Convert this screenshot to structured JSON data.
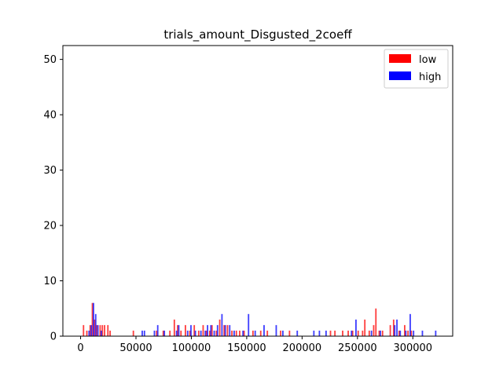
{
  "chart_data": {
    "type": "bar",
    "title": "trials_amount_Disgusted_2coeff",
    "xlabel": "",
    "ylabel": "",
    "xlim": [
      -16000,
      336000
    ],
    "ylim": [
      0,
      52.5
    ],
    "x_ticks": [
      0,
      50000,
      100000,
      150000,
      200000,
      250000,
      300000
    ],
    "x_tick_labels": [
      "0",
      "50000",
      "100000",
      "150000",
      "200000",
      "250000",
      "300000"
    ],
    "y_ticks": [
      0,
      10,
      20,
      30,
      40,
      50
    ],
    "y_tick_labels": [
      "0",
      "10",
      "20",
      "30",
      "40",
      "50"
    ],
    "grid": false,
    "legend_position": "top-right",
    "bin_width": 1300,
    "series": [
      {
        "name": "low",
        "color": "#ff0000",
        "bars": [
          {
            "x": 2000,
            "y": 2
          },
          {
            "x": 5000,
            "y": 1
          },
          {
            "x": 8000,
            "y": 2
          },
          {
            "x": 10000,
            "y": 6
          },
          {
            "x": 12000,
            "y": 3
          },
          {
            "x": 14000,
            "y": 2
          },
          {
            "x": 17000,
            "y": 2
          },
          {
            "x": 19000,
            "y": 2
          },
          {
            "x": 21000,
            "y": 2
          },
          {
            "x": 24000,
            "y": 2
          },
          {
            "x": 26000,
            "y": 1
          },
          {
            "x": 47000,
            "y": 1
          },
          {
            "x": 68000,
            "y": 1
          },
          {
            "x": 74000,
            "y": 1
          },
          {
            "x": 80000,
            "y": 1
          },
          {
            "x": 84000,
            "y": 3
          },
          {
            "x": 87000,
            "y": 2
          },
          {
            "x": 90000,
            "y": 1
          },
          {
            "x": 94000,
            "y": 2
          },
          {
            "x": 98000,
            "y": 1
          },
          {
            "x": 102000,
            "y": 2
          },
          {
            "x": 106000,
            "y": 1
          },
          {
            "x": 110000,
            "y": 2
          },
          {
            "x": 113000,
            "y": 1
          },
          {
            "x": 116000,
            "y": 1
          },
          {
            "x": 118000,
            "y": 2
          },
          {
            "x": 122000,
            "y": 1
          },
          {
            "x": 125000,
            "y": 3
          },
          {
            "x": 129000,
            "y": 2
          },
          {
            "x": 132000,
            "y": 2
          },
          {
            "x": 136000,
            "y": 1
          },
          {
            "x": 140000,
            "y": 1
          },
          {
            "x": 143000,
            "y": 1
          },
          {
            "x": 147000,
            "y": 1
          },
          {
            "x": 155000,
            "y": 1
          },
          {
            "x": 162000,
            "y": 1
          },
          {
            "x": 168000,
            "y": 1
          },
          {
            "x": 180000,
            "y": 1
          },
          {
            "x": 188000,
            "y": 1
          },
          {
            "x": 225000,
            "y": 1
          },
          {
            "x": 229000,
            "y": 1
          },
          {
            "x": 236000,
            "y": 1
          },
          {
            "x": 241000,
            "y": 1
          },
          {
            "x": 245000,
            "y": 1
          },
          {
            "x": 250000,
            "y": 1
          },
          {
            "x": 254000,
            "y": 1
          },
          {
            "x": 256000,
            "y": 3
          },
          {
            "x": 260000,
            "y": 1
          },
          {
            "x": 264000,
            "y": 2
          },
          {
            "x": 266000,
            "y": 5
          },
          {
            "x": 269000,
            "y": 1
          },
          {
            "x": 272000,
            "y": 1
          },
          {
            "x": 279000,
            "y": 2
          },
          {
            "x": 282000,
            "y": 3
          },
          {
            "x": 287000,
            "y": 1
          },
          {
            "x": 292000,
            "y": 2
          },
          {
            "x": 295000,
            "y": 1
          },
          {
            "x": 298000,
            "y": 1
          }
        ]
      },
      {
        "name": "high",
        "color": "#0000ff",
        "bars": [
          {
            "x": 7000,
            "y": 1
          },
          {
            "x": 9000,
            "y": 2
          },
          {
            "x": 11000,
            "y": 6
          },
          {
            "x": 13000,
            "y": 4
          },
          {
            "x": 15000,
            "y": 2
          },
          {
            "x": 18000,
            "y": 1
          },
          {
            "x": 55000,
            "y": 1
          },
          {
            "x": 57000,
            "y": 1
          },
          {
            "x": 66000,
            "y": 1
          },
          {
            "x": 69000,
            "y": 2
          },
          {
            "x": 75000,
            "y": 1
          },
          {
            "x": 86000,
            "y": 1
          },
          {
            "x": 88000,
            "y": 2
          },
          {
            "x": 96000,
            "y": 1
          },
          {
            "x": 99000,
            "y": 2
          },
          {
            "x": 103000,
            "y": 1
          },
          {
            "x": 108000,
            "y": 1
          },
          {
            "x": 112000,
            "y": 1
          },
          {
            "x": 114000,
            "y": 2
          },
          {
            "x": 117000,
            "y": 2
          },
          {
            "x": 120000,
            "y": 1
          },
          {
            "x": 123000,
            "y": 2
          },
          {
            "x": 127000,
            "y": 4
          },
          {
            "x": 130000,
            "y": 2
          },
          {
            "x": 134000,
            "y": 2
          },
          {
            "x": 138000,
            "y": 1
          },
          {
            "x": 146000,
            "y": 1
          },
          {
            "x": 151000,
            "y": 4
          },
          {
            "x": 157000,
            "y": 1
          },
          {
            "x": 165000,
            "y": 2
          },
          {
            "x": 176000,
            "y": 2
          },
          {
            "x": 182000,
            "y": 1
          },
          {
            "x": 195000,
            "y": 1
          },
          {
            "x": 210000,
            "y": 1
          },
          {
            "x": 215000,
            "y": 1
          },
          {
            "x": 221000,
            "y": 1
          },
          {
            "x": 244000,
            "y": 1
          },
          {
            "x": 248000,
            "y": 3
          },
          {
            "x": 262000,
            "y": 1
          },
          {
            "x": 270000,
            "y": 1
          },
          {
            "x": 283000,
            "y": 2
          },
          {
            "x": 285000,
            "y": 3
          },
          {
            "x": 288000,
            "y": 1
          },
          {
            "x": 293000,
            "y": 1
          },
          {
            "x": 297000,
            "y": 4
          },
          {
            "x": 300000,
            "y": 1
          },
          {
            "x": 308000,
            "y": 1
          },
          {
            "x": 320000,
            "y": 1
          }
        ]
      }
    ]
  }
}
